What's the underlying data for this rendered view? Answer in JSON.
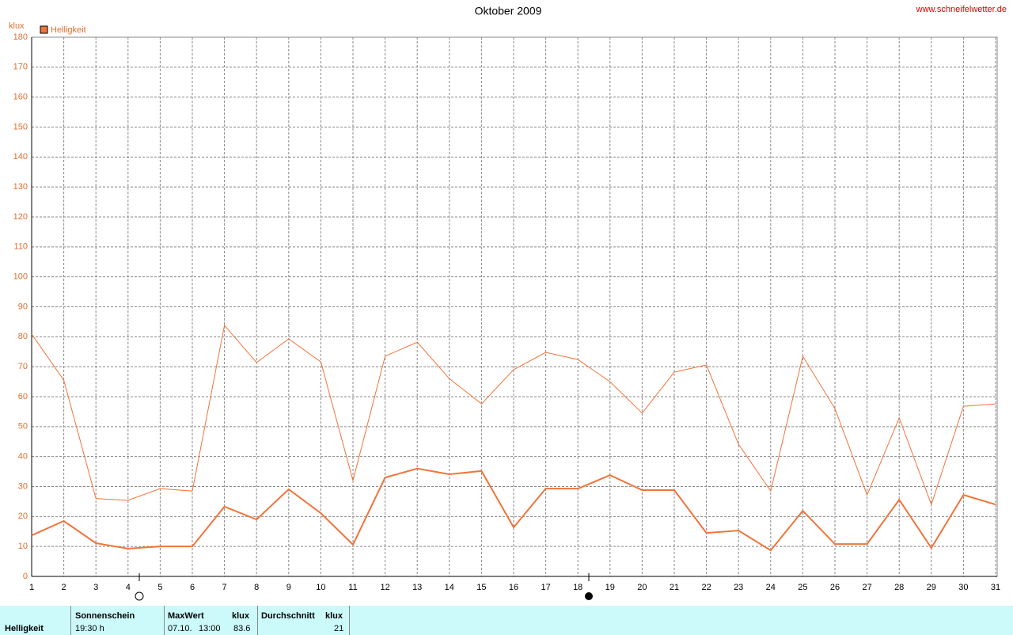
{
  "chart_data": {
    "type": "line",
    "title": "Oktober 2009",
    "source": "www.schneifelwetter.de",
    "ylabel": "klux",
    "x": [
      1,
      2,
      3,
      4,
      5,
      6,
      7,
      8,
      9,
      10,
      11,
      12,
      13,
      14,
      15,
      16,
      17,
      18,
      19,
      20,
      21,
      22,
      23,
      24,
      25,
      26,
      27,
      28,
      29,
      30,
      31
    ],
    "xlim": [
      1,
      31
    ],
    "xticks": [
      1,
      2,
      3,
      4,
      5,
      6,
      7,
      8,
      9,
      10,
      11,
      12,
      13,
      14,
      15,
      16,
      17,
      18,
      19,
      20,
      21,
      22,
      23,
      24,
      25,
      26,
      27,
      28,
      29,
      30,
      31
    ],
    "ylim": [
      0,
      180
    ],
    "yticks": [
      0,
      10,
      20,
      30,
      40,
      50,
      60,
      70,
      80,
      90,
      100,
      110,
      120,
      130,
      140,
      150,
      160,
      170,
      180
    ],
    "grid": true,
    "series": [
      {
        "name": "Helligkeit",
        "color": "#f0743c",
        "width": 2,
        "values": [
          13.7,
          18.5,
          11.1,
          9.3,
          10,
          10,
          23.3,
          19,
          29.1,
          21.1,
          10.6,
          33,
          36,
          34.1,
          35.2,
          16.4,
          29.3,
          29.3,
          33.8,
          28.8,
          28.8,
          14.5,
          15.3,
          8.7,
          21.9,
          10.8,
          10.8,
          25.6,
          9.5,
          27.2,
          24
        ]
      },
      {
        "color": "#f0743c",
        "width": 1,
        "values": [
          80.9,
          65.5,
          26,
          25.4,
          29.3,
          28.5,
          83.8,
          71.4,
          79.3,
          71.6,
          32,
          73.5,
          78.2,
          66,
          57.6,
          69,
          74.8,
          72.4,
          65,
          54.5,
          68.2,
          70.6,
          44.1,
          28.5,
          73.5,
          56,
          27.2,
          52.9,
          24,
          56.8,
          57.6
        ]
      }
    ]
  },
  "table": {
    "row_label": "Helligkeit",
    "sun_header": "Sonnenschein",
    "sun_value": "19:30 h",
    "max_header": "MaxWert",
    "max_unit": "klux",
    "max_date": "07.10.",
    "max_time": "13:00",
    "max_value": "83.6",
    "avg_header": "Durchschnitt",
    "avg_unit": "klux",
    "avg_value": "21"
  }
}
